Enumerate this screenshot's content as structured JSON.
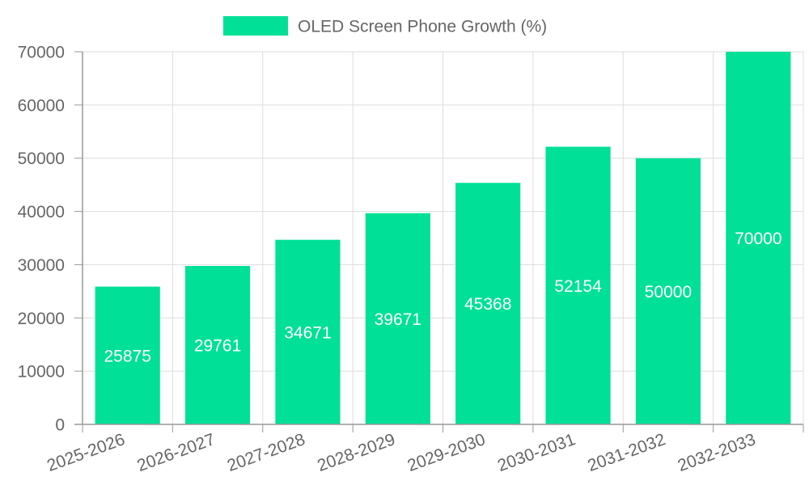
{
  "chart_data": {
    "type": "bar",
    "categories": [
      "2025-2026",
      "2026-2027",
      "2027-2028",
      "2028-2029",
      "2029-2030",
      "2030-2031",
      "2031-2032",
      "2032-2033"
    ],
    "series": [
      {
        "name": "OLED Screen Phone Growth (%)",
        "values": [
          25875,
          29761,
          34671,
          39671,
          45368,
          52154,
          50000,
          70000
        ],
        "color": "#00e096"
      }
    ],
    "ylim": [
      0,
      70000
    ],
    "yticks": [
      0,
      10000,
      20000,
      30000,
      40000,
      50000,
      60000,
      70000
    ],
    "grid": true,
    "legend_position": "top-center",
    "title": "",
    "xlabel": "",
    "ylabel": ""
  },
  "colors": {
    "bar": "#00e096",
    "grid": "#dddddd",
    "axis": "#999999",
    "tick_text": "#666666",
    "data_label_text": "#ffffff"
  }
}
